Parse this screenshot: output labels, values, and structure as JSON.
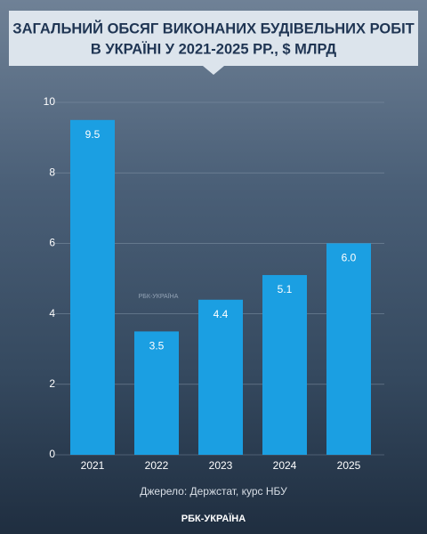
{
  "chart_data": {
    "type": "bar",
    "title": [
      "ЗАГАЛЬНИЙ ОБСЯГ ВИКОНАНИХ БУДІВЕЛЬНИХ РОБІТ",
      "В УКРАЇНІ У 2021-2025 РР., $ МЛРД"
    ],
    "categories": [
      "2021",
      "2022",
      "2023",
      "2024",
      "2025"
    ],
    "values": [
      9.5,
      3.5,
      4.4,
      5.1,
      6.0
    ],
    "value_labels": [
      "9.5",
      "3.5",
      "4.4",
      "5.1",
      "6.0"
    ],
    "color": "#1b9fe2",
    "ylim": [
      0,
      10
    ],
    "yticks": [
      0,
      2,
      4,
      6,
      8,
      10
    ],
    "grid": true,
    "source": "Джерело: Держстат, курс НБУ",
    "watermark": "РБК-УКРАЇНА",
    "logo": "РБК-УКРАЇНА"
  }
}
